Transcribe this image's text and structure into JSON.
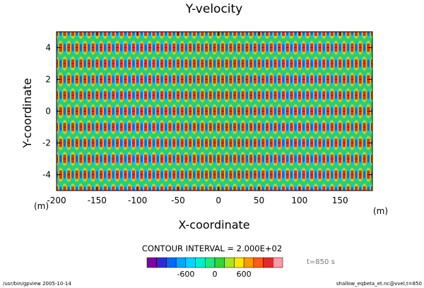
{
  "chart_data": {
    "type": "heatmap",
    "title": "Y-velocity",
    "xlabel": "X-coordinate",
    "ylabel": "Y-coordinate",
    "x_unit": "(m)",
    "y_unit": "(m)",
    "xlim": [
      -200,
      190
    ],
    "ylim": [
      -5,
      5
    ],
    "x_ticks": [
      -200,
      -150,
      -100,
      -50,
      0,
      50,
      100,
      150
    ],
    "y_ticks": [
      4,
      2,
      0,
      -2,
      -4
    ],
    "contour_interval_label": "CONTOUR INTERVAL = 2.000E+02",
    "time_label": "t=850 s",
    "colorbar": {
      "colors": [
        "#7f00a8",
        "#2b2bd6",
        "#0068ff",
        "#00a6ff",
        "#00d6ff",
        "#00f0c8",
        "#21e879",
        "#33d633",
        "#a6e61f",
        "#ffe600",
        "#ff9a00",
        "#ff5a1e",
        "#e32a2a",
        "#ff9aa8"
      ],
      "tick_labels": [
        "-600",
        "0",
        "600"
      ],
      "tick_values": [
        -600,
        0,
        600
      ],
      "min": -1400,
      "max": 1400
    },
    "pattern": {
      "description": "quasi-periodic cellular field; each cell: red core, orange/yellow ring, green background, cyan/blue troughs",
      "x_period": 10,
      "y_period": 1,
      "stagger": 5
    }
  },
  "footer": {
    "left": "/usr/bin/gpview   2005-10-14",
    "right": "shallow_eqbeta_et.nc@vvel,t=850"
  }
}
